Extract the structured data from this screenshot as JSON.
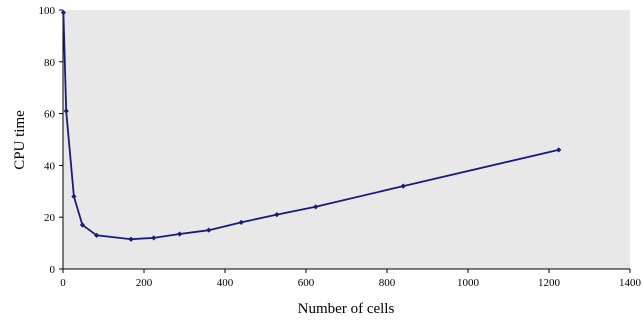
{
  "chart_data": {
    "type": "line",
    "title": "",
    "xlabel": "Number of cells",
    "ylabel": "CPU time",
    "xlim": [
      0,
      1400
    ],
    "ylim": [
      0,
      100
    ],
    "x_ticks": [
      "0",
      "200",
      "400",
      "600",
      "800",
      "1000",
      "1200",
      "1400"
    ],
    "y_ticks": [
      "0",
      "20",
      "40",
      "60",
      "80",
      "100"
    ],
    "grid": false,
    "legend": "none",
    "series": [
      {
        "x": [
          1,
          8,
          27,
          48,
          83,
          168,
          224,
          288,
          360,
          440,
          528,
          624,
          840,
          1224
        ],
        "y": [
          99,
          61,
          28,
          17,
          13,
          11.5,
          12,
          13.5,
          15,
          18,
          21,
          24,
          32,
          46
        ]
      }
    ],
    "colors": {
      "plot_background": "#e8e8e8",
      "line": "#1a1a7a"
    }
  }
}
